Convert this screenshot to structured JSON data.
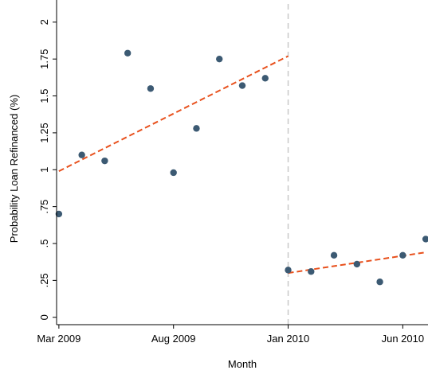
{
  "chart_data": {
    "type": "scatter",
    "title": "",
    "xlabel": "Month",
    "ylabel": "Probability Loan Refinanced (%)",
    "x_ticks": [
      {
        "value": 0,
        "label": "Mar 2009"
      },
      {
        "value": 5,
        "label": "Aug 2009"
      },
      {
        "value": 10,
        "label": "Jan 2010"
      },
      {
        "value": 15,
        "label": "Jun 2010"
      }
    ],
    "y_ticks": [
      {
        "value": 0,
        "label": "0"
      },
      {
        "value": 0.25,
        "label": ".25"
      },
      {
        "value": 0.5,
        "label": ".5"
      },
      {
        "value": 0.75,
        "label": ".75"
      },
      {
        "value": 1,
        "label": "1"
      },
      {
        "value": 1.25,
        "label": "1.25"
      },
      {
        "value": 1.5,
        "label": "1.5"
      },
      {
        "value": 1.75,
        "label": "1.75"
      },
      {
        "value": 2,
        "label": "2"
      }
    ],
    "xlim": [
      -0.1,
      16.1
    ],
    "ylim": [
      -0.05,
      2.15
    ],
    "grid": false,
    "points": [
      {
        "x": "Mar 2009",
        "y": 0.7
      },
      {
        "x": "Apr 2009",
        "y": 1.1
      },
      {
        "x": "May 2009",
        "y": 1.06
      },
      {
        "x": "Jun 2009",
        "y": 1.79
      },
      {
        "x": "Jul 2009",
        "y": 1.55
      },
      {
        "x": "Aug 2009",
        "y": 0.98
      },
      {
        "x": "Sep 2009",
        "y": 1.28
      },
      {
        "x": "Oct 2009",
        "y": 1.75
      },
      {
        "x": "Nov 2009",
        "y": 1.57
      },
      {
        "x": "Dec 2009",
        "y": 1.62
      },
      {
        "x": "Jan 2010",
        "y": 0.32
      },
      {
        "x": "Feb 2010",
        "y": 0.31
      },
      {
        "x": "Mar 2010",
        "y": 0.42
      },
      {
        "x": "Apr 2010",
        "y": 0.36
      },
      {
        "x": "May 2010",
        "y": 0.24
      },
      {
        "x": "Jun 2010",
        "y": 0.42
      },
      {
        "x": "Jul 2010",
        "y": 0.53
      }
    ],
    "fit_lines": [
      {
        "x": [
          "Mar 2009",
          "Jan 2010"
        ],
        "y": [
          0.99,
          1.77
        ]
      },
      {
        "x": [
          "Jan 2010",
          "Jul 2010"
        ],
        "y": [
          0.3,
          0.44
        ]
      }
    ],
    "reference_line": {
      "x": "Jan 2010"
    },
    "colors": {
      "points": "#3c5a73",
      "fit": "#e8501c",
      "reference": "#c8c8c8",
      "axis": "#000000"
    }
  }
}
